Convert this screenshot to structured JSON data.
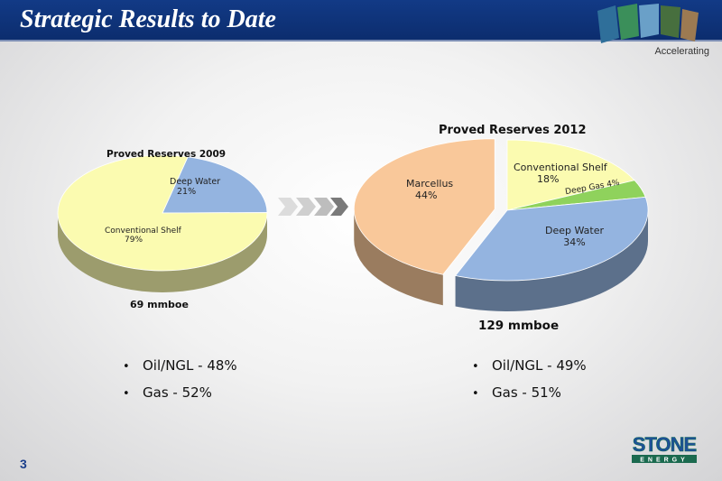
{
  "header": {
    "title": "Strategic Results to Date",
    "tagline": "Accelerating"
  },
  "page_number": "3",
  "logo": {
    "name": "STONE",
    "sub": "ENERGY"
  },
  "chart_data": [
    {
      "type": "pie",
      "title": "Proved Reserves 2009",
      "total": "69 mmboe",
      "slices": [
        {
          "label": "Deep Water",
          "value": 21,
          "pct": "21%",
          "color": "#94b4e0"
        },
        {
          "label": "Conventional Shelf",
          "value": 79,
          "pct": "79%",
          "color": "#fbfbb0"
        }
      ]
    },
    {
      "type": "pie",
      "title": "Proved Reserves 2012",
      "total": "129 mmboe",
      "slices": [
        {
          "label": "Conventional Shelf",
          "value": 18,
          "pct": "18%",
          "color": "#fbfbb0"
        },
        {
          "label": "Deep Gas",
          "value": 4,
          "pct": "4%",
          "color": "#8fd25c"
        },
        {
          "label": "Deep Water",
          "value": 34,
          "pct": "34%",
          "color": "#94b4e0"
        },
        {
          "label": "Marcellus",
          "value": 44,
          "pct": "44%",
          "color": "#f9c89a"
        }
      ]
    }
  ],
  "bullets_2009": [
    "Oil/NGL - 48%",
    "Gas - 52%"
  ],
  "bullets_2012": [
    "Oil/NGL - 49%",
    "Gas - 51%"
  ]
}
